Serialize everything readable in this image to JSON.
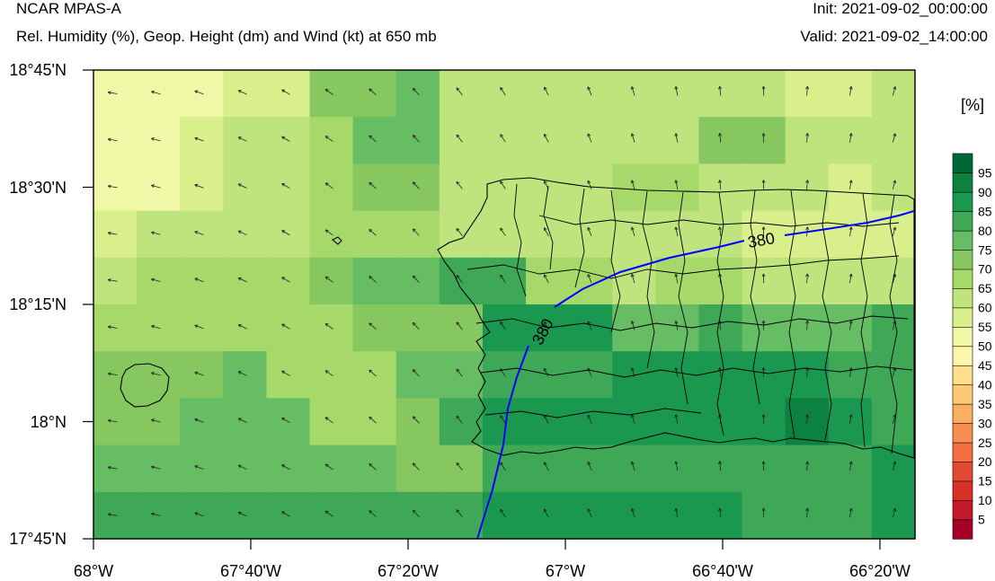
{
  "header": {
    "model": "NCAR MPAS-A",
    "subtitle": "Rel. Humidity (%), Geop. Height (dm) and Wind (kt) at 650 mb",
    "init": "Init: 2021-09-02_00:00:00",
    "valid": "Valid: 2021-09-02_14:00:00"
  },
  "axes": {
    "x_ticks": [
      "68°W",
      "67°40'W",
      "67°20'W",
      "67°W",
      "66°40'W",
      "66°20'W"
    ],
    "y_ticks": [
      "18°45'N",
      "18°30'N",
      "18°15'N",
      "18°N",
      "17°45'N"
    ]
  },
  "colorbar": {
    "unit": "[%]",
    "levels": [
      "5",
      "10",
      "15",
      "20",
      "25",
      "30",
      "35",
      "40",
      "45",
      "50",
      "55",
      "60",
      "65",
      "70",
      "75",
      "80",
      "85",
      "90",
      "95"
    ],
    "colors": [
      "#a50026",
      "#c3192a",
      "#d73027",
      "#e34a33",
      "#f46d43",
      "#f98e52",
      "#fdae61",
      "#fec877",
      "#fee08b",
      "#fdf5ab",
      "#f0f8a8",
      "#d9ef8b",
      "#bfe37d",
      "#a6d96a",
      "#86c760",
      "#66bd63",
      "#3fa856",
      "#1a9850",
      "#0d8240",
      "#006837"
    ]
  },
  "contours": [
    {
      "label": "380",
      "color": "#0000ff"
    },
    {
      "label": "380",
      "color": "#0000ff"
    }
  ],
  "rh_grid": [
    [
      10,
      10,
      10,
      11,
      11,
      14,
      14,
      15,
      12,
      12,
      12,
      12,
      12,
      12,
      12,
      12,
      11,
      11,
      12
    ],
    [
      10,
      10,
      11,
      12,
      12,
      13,
      15,
      15,
      12,
      12,
      12,
      12,
      12,
      12,
      14,
      14,
      12,
      12,
      12
    ],
    [
      10,
      10,
      11,
      12,
      12,
      13,
      14,
      14,
      12,
      12,
      12,
      12,
      13,
      13,
      12,
      12,
      12,
      11,
      12
    ],
    [
      11,
      12,
      12,
      12,
      12,
      13,
      13,
      13,
      12,
      12,
      12,
      12,
      12,
      12,
      12,
      11,
      11,
      11,
      11
    ],
    [
      12,
      13,
      13,
      13,
      13,
      14,
      15,
      15,
      16,
      16,
      13,
      13,
      12,
      13,
      13,
      12,
      12,
      12,
      12
    ],
    [
      13,
      13,
      13,
      13,
      13,
      13,
      14,
      14,
      14,
      17,
      17,
      17,
      15,
      15,
      16,
      15,
      15,
      15,
      16
    ],
    [
      14,
      14,
      14,
      15,
      13,
      13,
      13,
      15,
      15,
      16,
      16,
      16,
      17,
      17,
      17,
      17,
      17,
      16,
      16
    ],
    [
      14,
      14,
      15,
      15,
      15,
      13,
      13,
      14,
      16,
      17,
      17,
      17,
      17,
      17,
      17,
      17,
      18,
      17,
      16
    ],
    [
      15,
      15,
      15,
      15,
      15,
      15,
      15,
      14,
      14,
      16,
      16,
      16,
      16,
      16,
      16,
      16,
      16,
      16,
      17
    ],
    [
      16,
      16,
      16,
      16,
      16,
      16,
      16,
      16,
      16,
      17,
      17,
      17,
      17,
      17,
      17,
      16,
      16,
      16,
      17
    ]
  ]
}
